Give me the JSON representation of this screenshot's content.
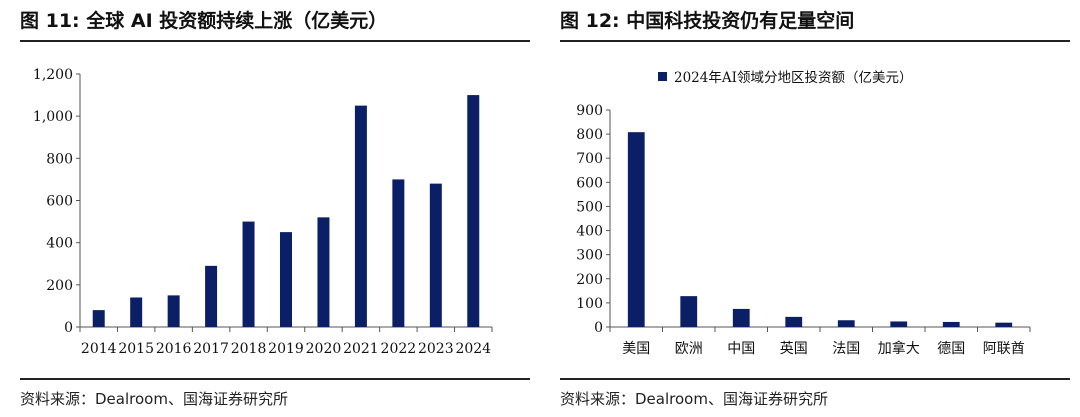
{
  "left": {
    "figure_title": "图 11:  全球 AI 投资额持续上涨（亿美元）",
    "source": "资料来源：Dealroom、国海证券研究所"
  },
  "right": {
    "figure_title": "图 12:  中国科技投资仍有足量空间",
    "source": "资料来源：Dealroom、国海证券研究所"
  },
  "colors": {
    "bar": "#0b1f66",
    "axis": "#555555",
    "rule": "#222222"
  },
  "chart_data": [
    {
      "type": "bar",
      "title": "全球 AI 投资额持续上涨（亿美元）",
      "categories": [
        "2014",
        "2015",
        "2016",
        "2017",
        "2018",
        "2019",
        "2020",
        "2021",
        "2022",
        "2023",
        "2024"
      ],
      "series": [
        {
          "values": [
            80,
            140,
            150,
            290,
            500,
            450,
            520,
            1050,
            700,
            680,
            1100
          ]
        }
      ],
      "yticks": [
        "0",
        "200",
        "400",
        "600",
        "800",
        "1,000",
        "1,200"
      ],
      "ylim": [
        0,
        1200
      ],
      "grid": false
    },
    {
      "type": "bar",
      "title": "中国科技投资仍有足量空间",
      "categories": [
        "美国",
        "欧洲",
        "中国",
        "英国",
        "法国",
        "加拿大",
        "德国",
        "阿联酋"
      ],
      "series": [
        {
          "name": "2024年AI领域分地区投资额（亿美元）",
          "values": [
            808,
            128,
            75,
            42,
            28,
            23,
            21,
            18
          ]
        }
      ],
      "yticks": [
        "0",
        "100",
        "200",
        "300",
        "400",
        "500",
        "600",
        "700",
        "800",
        "900"
      ],
      "ylim": [
        0,
        900
      ],
      "legend": "top",
      "grid": false
    }
  ]
}
